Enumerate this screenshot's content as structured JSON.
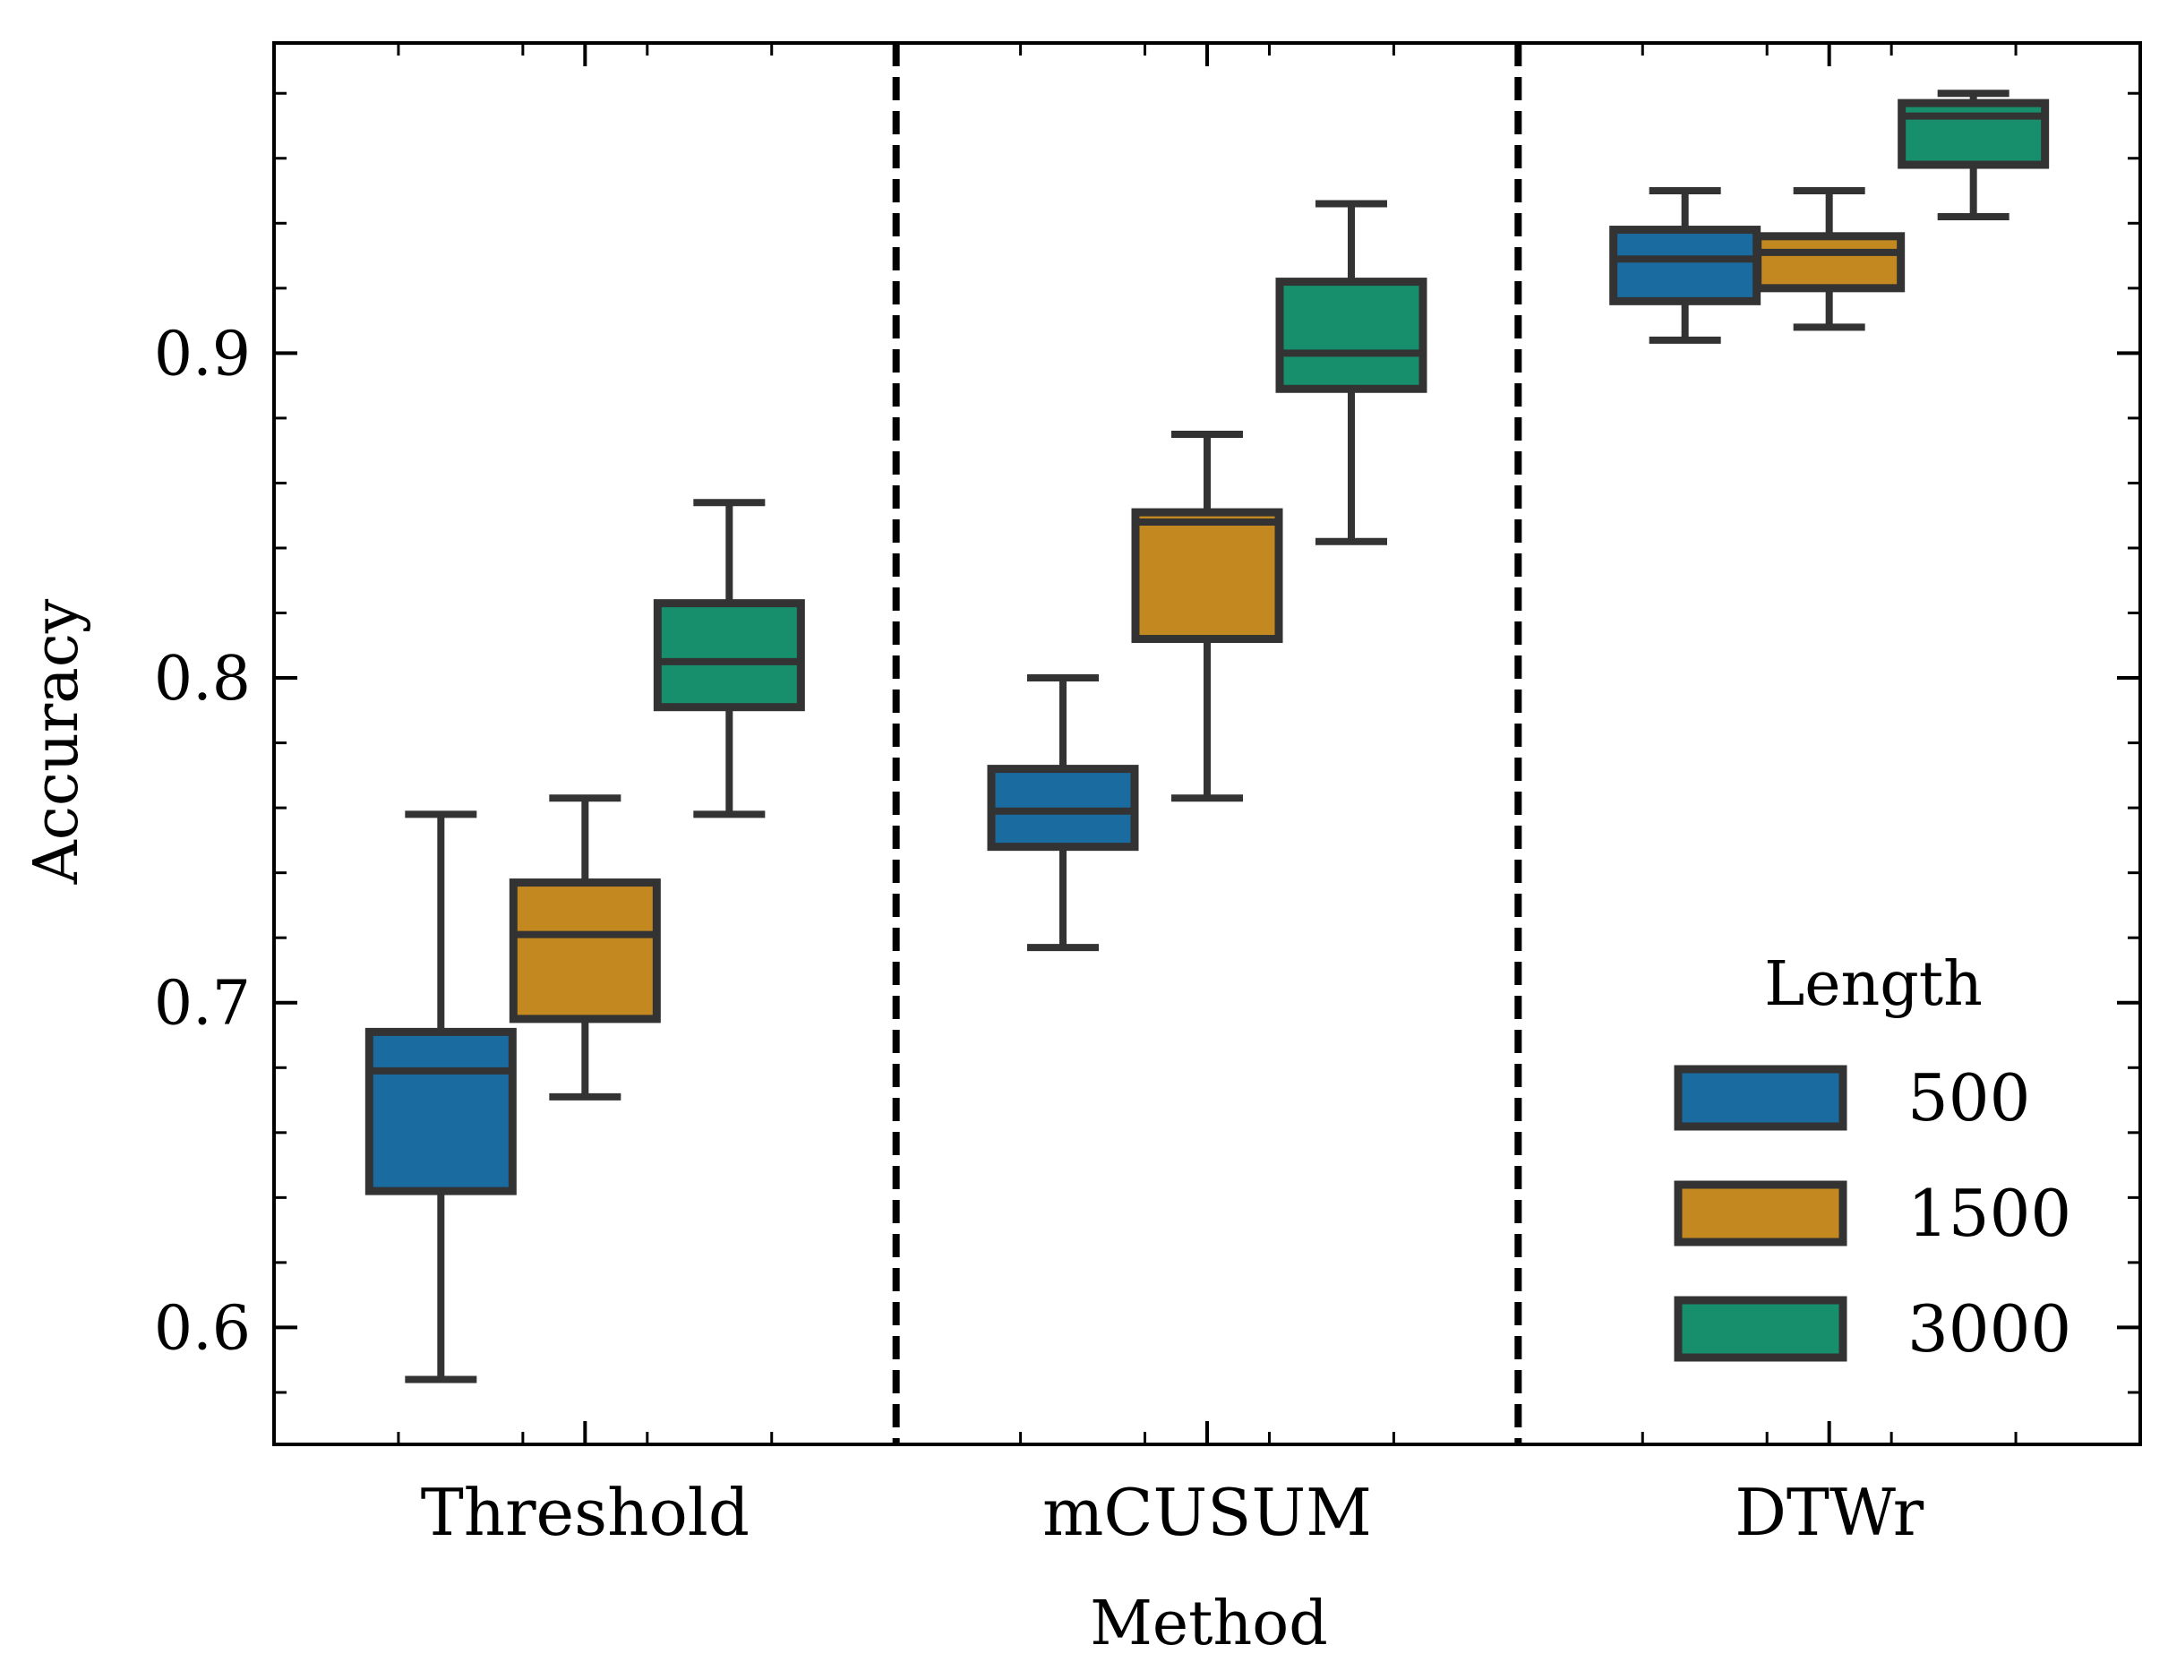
{
  "chart_data": {
    "type": "box",
    "xlabel": "Method",
    "ylabel": "Accuracy",
    "categories": [
      "Threshold",
      "mCUSUM",
      "DTWr"
    ],
    "ylim": [
      0.564,
      0.9955
    ],
    "yticks": [
      {
        "value": 0.6,
        "label": "0.6"
      },
      {
        "value": 0.7,
        "label": "0.7"
      },
      {
        "value": 0.8,
        "label": "0.8"
      },
      {
        "value": 0.9,
        "label": "0.9"
      }
    ],
    "y_minor_step": 0.02,
    "legend": {
      "title": "Length",
      "position": "lower-right"
    },
    "series": [
      {
        "name": "500",
        "color": "#1a6ca0",
        "boxes": [
          {
            "whisker_low": 0.584,
            "q1": 0.642,
            "median": 0.679,
            "q3": 0.691,
            "whisker_high": 0.758
          },
          {
            "whisker_low": 0.717,
            "q1": 0.748,
            "median": 0.759,
            "q3": 0.772,
            "whisker_high": 0.8
          },
          {
            "whisker_low": 0.904,
            "q1": 0.916,
            "median": 0.929,
            "q3": 0.938,
            "whisker_high": 0.95
          }
        ]
      },
      {
        "name": "1500",
        "color": "#c38820",
        "boxes": [
          {
            "whisker_low": 0.671,
            "q1": 0.695,
            "median": 0.721,
            "q3": 0.737,
            "whisker_high": 0.763
          },
          {
            "whisker_low": 0.763,
            "q1": 0.812,
            "median": 0.848,
            "q3": 0.851,
            "whisker_high": 0.875
          },
          {
            "whisker_low": 0.908,
            "q1": 0.92,
            "median": 0.931,
            "q3": 0.936,
            "whisker_high": 0.95
          }
        ]
      },
      {
        "name": "3000",
        "color": "#178f6d",
        "boxes": [
          {
            "whisker_low": 0.758,
            "q1": 0.791,
            "median": 0.805,
            "q3": 0.823,
            "whisker_high": 0.854
          },
          {
            "whisker_low": 0.842,
            "q1": 0.889,
            "median": 0.9,
            "q3": 0.922,
            "whisker_high": 0.946
          },
          {
            "whisker_low": 0.942,
            "q1": 0.958,
            "median": 0.973,
            "q3": 0.977,
            "whisker_high": 0.98
          }
        ]
      }
    ]
  }
}
